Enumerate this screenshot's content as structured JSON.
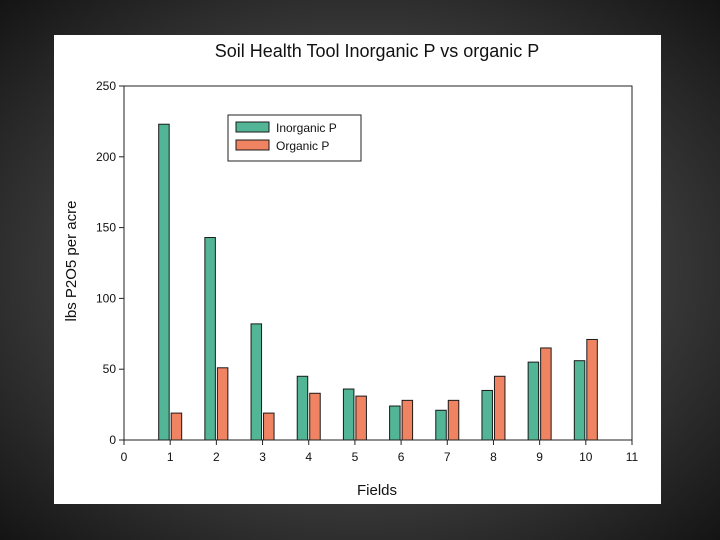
{
  "chart_data": {
    "type": "bar",
    "title": "Soil Health Tool Inorganic P vs organic P",
    "xlabel": "Fields",
    "ylabel": "lbs P2O5 per acre",
    "xlim": [
      0,
      11
    ],
    "ylim": [
      0,
      250
    ],
    "xticks": [
      "0",
      "1",
      "2",
      "3",
      "4",
      "5",
      "6",
      "7",
      "8",
      "9",
      "10",
      "11"
    ],
    "yticks": [
      "0",
      "50",
      "100",
      "150",
      "200",
      "250"
    ],
    "categories": [
      "1",
      "2",
      "3",
      "4",
      "5",
      "6",
      "7",
      "8",
      "9",
      "10"
    ],
    "series": [
      {
        "name": "Inorganic P",
        "values": [
          223,
          143,
          82,
          45,
          36,
          24,
          21,
          35,
          55,
          56
        ]
      },
      {
        "name": "Organic P",
        "values": [
          19,
          51,
          19,
          33,
          31,
          28,
          28,
          45,
          65,
          71
        ]
      }
    ],
    "grid": false,
    "legend_position": "top-left"
  },
  "colors": {
    "inorganic": "#52b596",
    "organic": "#f08462",
    "axis": "#222222"
  }
}
